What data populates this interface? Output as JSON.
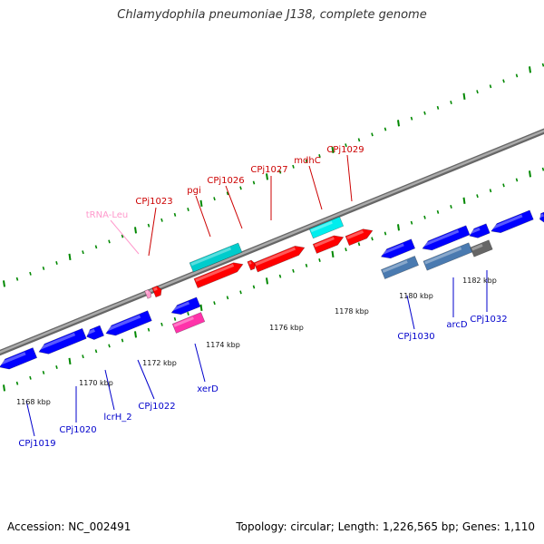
{
  "title": "Chlamydophila pneumoniae J138, complete genome",
  "footer": {
    "accession": "Accession: NC_002491",
    "summary": "Topology: circular; Length: 1,226,565 bp; Genes: 1,110"
  },
  "colors": {
    "forward_gene": "#ff0000",
    "reverse_gene": "#0000ff",
    "rna": "#ff99cc",
    "forward_feature": "#00cccc",
    "reverse_feature": "#ff33aa",
    "reverse_feature_alt": "#4a7ab0",
    "gray_feature": "#666666",
    "backbone": "#888888",
    "forward_label": "#cc0000",
    "reverse_label": "#0000cc",
    "trna_label": "#ff99cc",
    "tick": "#008800"
  },
  "kbp_labels": [
    {
      "text": "1168 kbp"
    },
    {
      "text": "1170 kbp"
    },
    {
      "text": "1172 kbp"
    },
    {
      "text": "1174 kbp"
    },
    {
      "text": "1176 kbp"
    },
    {
      "text": "1178 kbp"
    },
    {
      "text": "1180 kbp"
    },
    {
      "text": "1182 kbp"
    }
  ],
  "forward_labels": [
    {
      "text": "tRNA-Leu",
      "kind": "rna"
    },
    {
      "text": "CPj1023",
      "kind": "gene"
    },
    {
      "text": "pgi",
      "kind": "gene"
    },
    {
      "text": "CPj1026",
      "kind": "gene"
    },
    {
      "text": "CPj1027",
      "kind": "gene"
    },
    {
      "text": "mdhC",
      "kind": "gene"
    },
    {
      "text": "CPj1029",
      "kind": "gene"
    }
  ],
  "reverse_labels": [
    {
      "text": "CPj1019"
    },
    {
      "text": "CPj1020"
    },
    {
      "text": "lcrH_2"
    },
    {
      "text": "CPj1022"
    },
    {
      "text": "xerD"
    },
    {
      "text": "CPj1030"
    },
    {
      "text": "arcD"
    },
    {
      "text": "CPj1032"
    }
  ]
}
